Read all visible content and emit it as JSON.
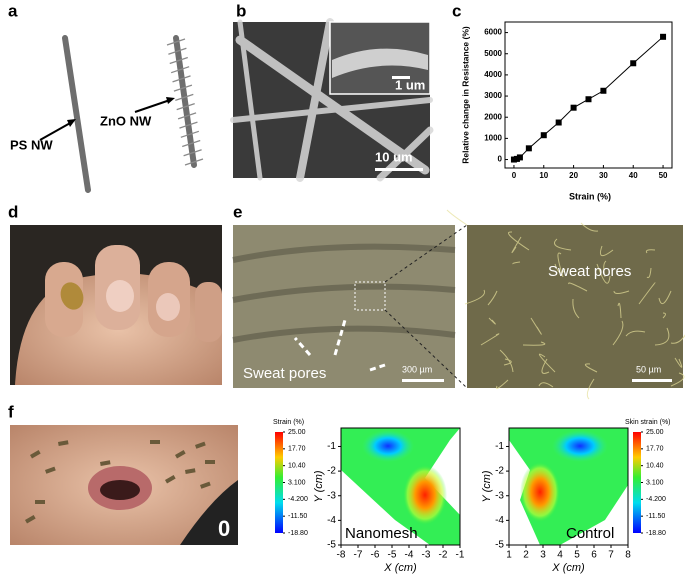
{
  "panel_labels": [
    "a",
    "b",
    "c",
    "d",
    "e",
    "f"
  ],
  "panel_a": {
    "ps_label": "PS NW",
    "zno_label": "ZnO NW"
  },
  "panel_b": {
    "inset_scale": "1 um",
    "scale": "10 um"
  },
  "chart_data": {
    "type": "line",
    "ylabel": "Relative change in Resistance (%)",
    "xlabel": "Strain (%)",
    "x": [
      0,
      1,
      2,
      5,
      10,
      15,
      20,
      25,
      30,
      40,
      50
    ],
    "values": [
      0,
      30,
      100,
      530,
      1150,
      1750,
      2450,
      2850,
      3250,
      4550,
      5800
    ],
    "color": "#000000",
    "xlim": [
      -3,
      53
    ],
    "xticks": [
      0,
      10,
      20,
      30,
      40,
      50
    ],
    "ylim": [
      -400,
      6500
    ],
    "yticks": [
      0,
      1000,
      2000,
      3000,
      4000,
      5000,
      6000
    ]
  },
  "panel_e": {
    "pores_left": "Sweat pores",
    "pores_right": "Sweat pores",
    "scale_left": "300 µm",
    "scale_right": "50 µm"
  },
  "panel_f": {
    "frame_label": "0",
    "maps": [
      {
        "name": "Nanomesh",
        "colorbar_title": "Strain (%)",
        "clim": [
          -18.8,
          25
        ],
        "cticks": [
          {
            "value": 25,
            "label": "25.00"
          },
          {
            "value": 17.7,
            "label": "17.70"
          },
          {
            "value": 10.4,
            "label": "10.40"
          },
          {
            "value": 3.1,
            "label": "3.100"
          },
          {
            "value": -4.2,
            "label": "-4.200"
          },
          {
            "value": -11.5,
            "label": "-11.50"
          },
          {
            "value": -18.8,
            "label": "-18.80"
          }
        ],
        "xlabel": "X (cm)",
        "ylabel": "Y (cm)",
        "xlim": [
          -8,
          -1
        ],
        "xticks": [
          -8,
          -7,
          -6,
          -5,
          -4,
          -3,
          -2,
          -1
        ],
        "ylim": [
          -5,
          -0.25
        ],
        "yticks": [
          -1,
          -2,
          -3,
          -4,
          -5
        ]
      },
      {
        "name": "Control",
        "colorbar_title": "Skin strain (%)",
        "clim": [
          -18.8,
          25
        ],
        "cticks": [
          {
            "value": 25,
            "label": "25.00"
          },
          {
            "value": 17.7,
            "label": "17.70"
          },
          {
            "value": 10.4,
            "label": "10.40"
          },
          {
            "value": 3.1,
            "label": "3.100"
          },
          {
            "value": -4.2,
            "label": "-4.200"
          },
          {
            "value": -11.5,
            "label": "-11.50"
          },
          {
            "value": -18.8,
            "label": "-18.80"
          }
        ],
        "xlabel": "X (cm)",
        "ylabel": "Y (cm)",
        "xlim": [
          1,
          8
        ],
        "xticks": [
          1,
          2,
          3,
          4,
          5,
          6,
          7,
          8
        ],
        "ylim": [
          -5,
          -0.25
        ],
        "yticks": [
          -1,
          -2,
          -3,
          -4,
          -5
        ]
      }
    ]
  }
}
